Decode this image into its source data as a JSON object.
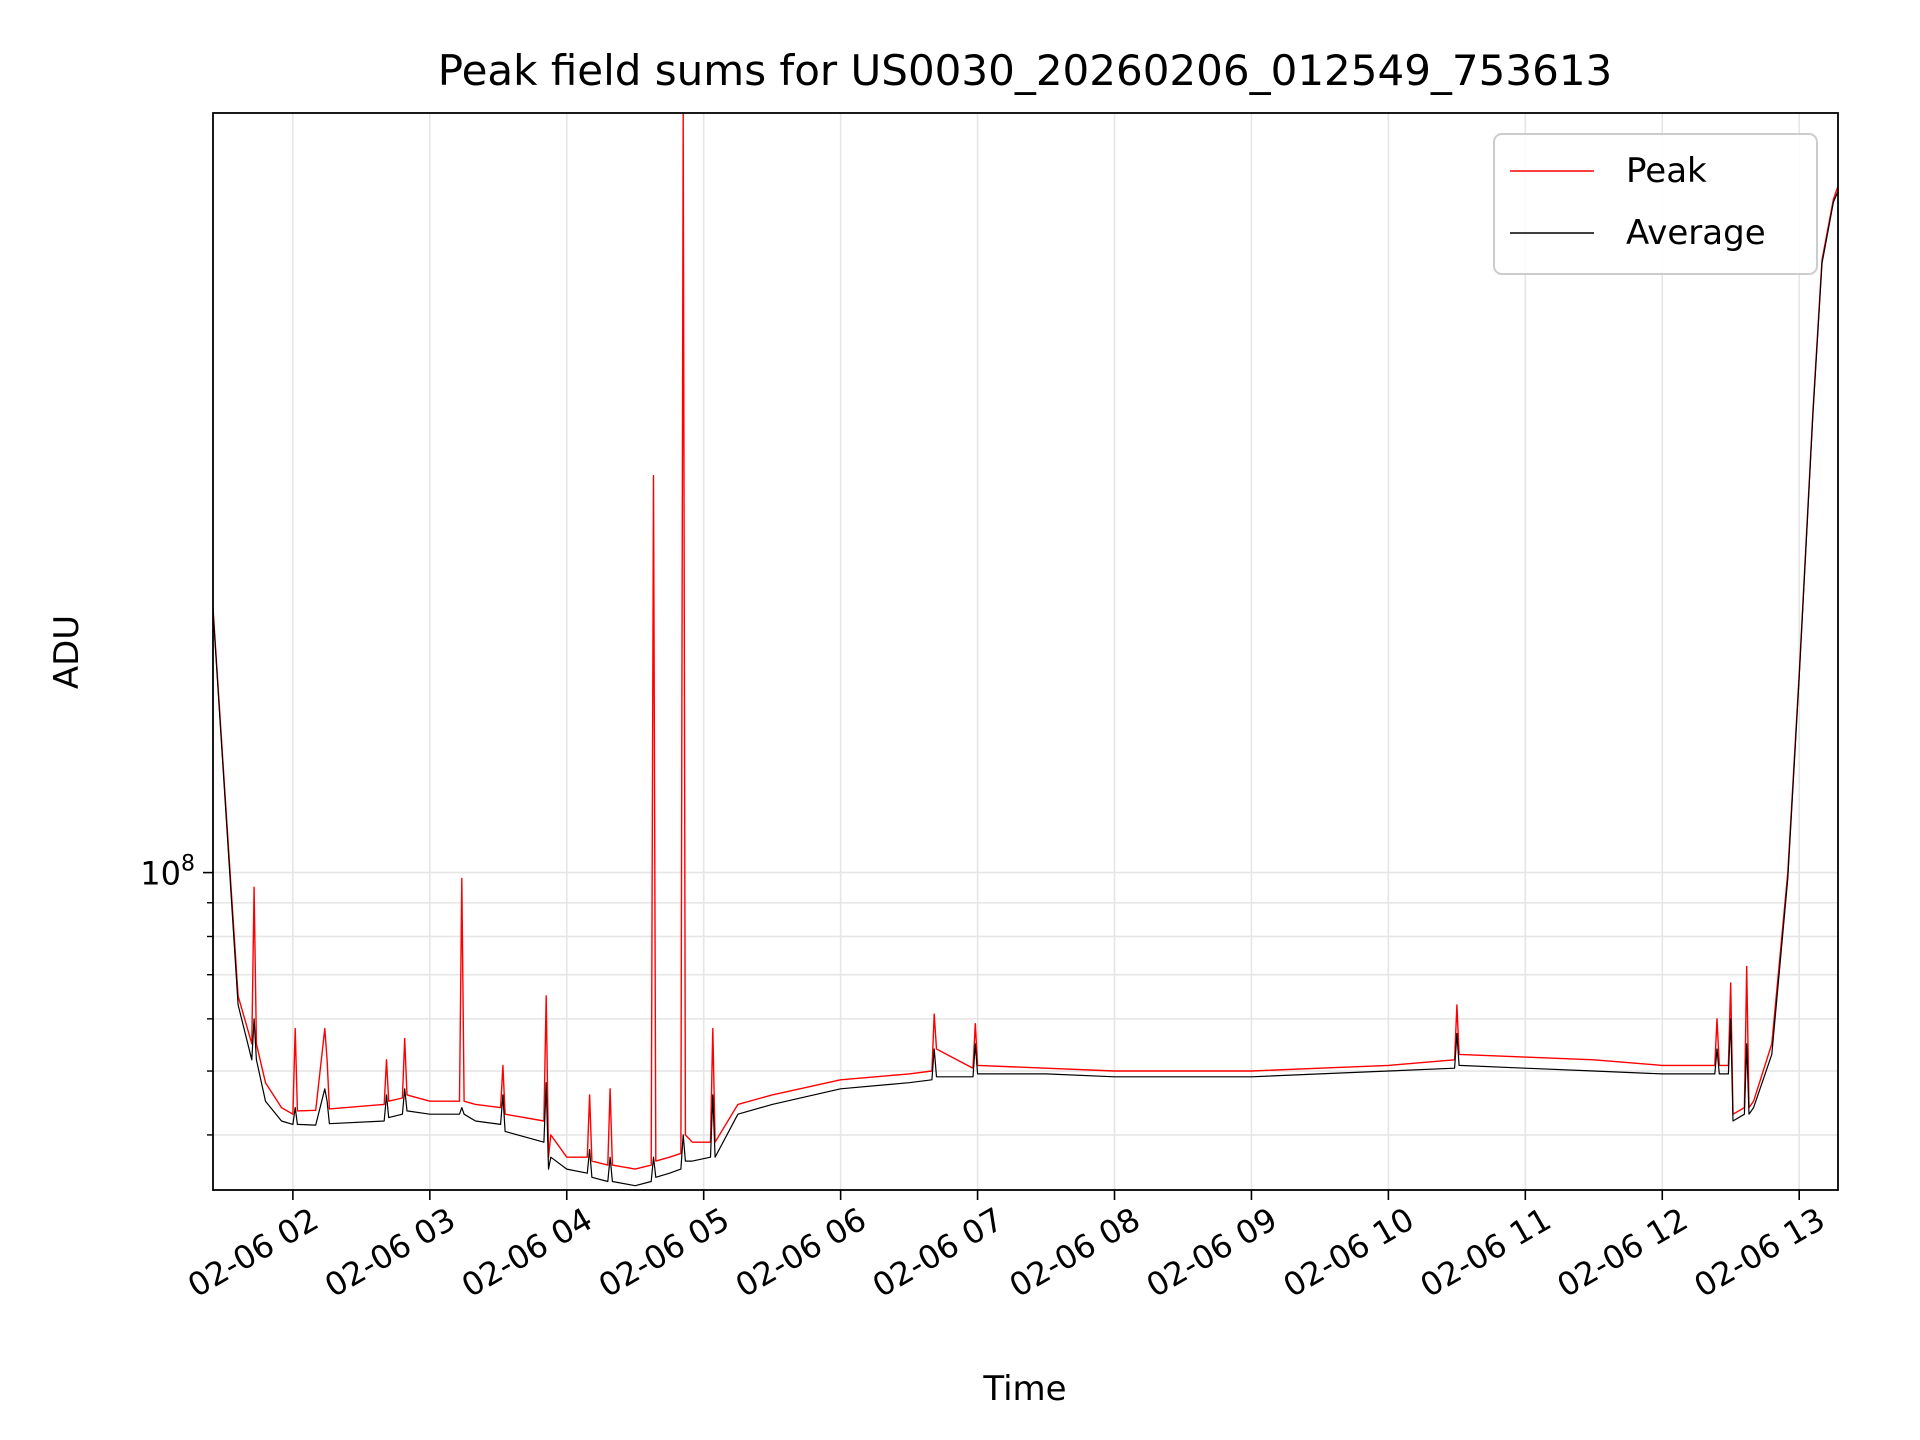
{
  "chart_data": {
    "type": "line",
    "title": "Peak field sums for US0030_20260206_012549_753613",
    "xlabel": "Time",
    "ylabel": "ADU",
    "y_scale": "log",
    "ylim": [
      33000000,
      1420000000
    ],
    "y_tick_labels": [
      {
        "base": "10",
        "exp": "8",
        "value": 100000000
      }
    ],
    "y_minor_ticks": [
      40000000,
      50000000,
      60000000,
      70000000,
      80000000,
      90000000
    ],
    "xlim": [
      "2026-02-06 01:25",
      "2026-02-06 13:17"
    ],
    "x_ticks": [
      {
        "label": "02-06 02",
        "time": "2026-02-06 02:00"
      },
      {
        "label": "02-06 03",
        "time": "2026-02-06 03:00"
      },
      {
        "label": "02-06 04",
        "time": "2026-02-06 04:00"
      },
      {
        "label": "02-06 05",
        "time": "2026-02-06 05:00"
      },
      {
        "label": "02-06 06",
        "time": "2026-02-06 06:00"
      },
      {
        "label": "02-06 07",
        "time": "2026-02-06 07:00"
      },
      {
        "label": "02-06 08",
        "time": "2026-02-06 08:00"
      },
      {
        "label": "02-06 09",
        "time": "2026-02-06 09:00"
      },
      {
        "label": "02-06 10",
        "time": "2026-02-06 10:00"
      },
      {
        "label": "02-06 11",
        "time": "2026-02-06 11:00"
      },
      {
        "label": "02-06 12",
        "time": "2026-02-06 12:00"
      },
      {
        "label": "02-06 13",
        "time": "2026-02-06 13:00"
      }
    ],
    "grid": true,
    "legend_position": "upper right",
    "series": [
      {
        "name": "Peak",
        "color": "#ff0000",
        "x": [
          "2026-02-06 01:25",
          "2026-02-06 01:31",
          "2026-02-06 01:36",
          "2026-02-06 01:42",
          "2026-02-06 01:43",
          "2026-02-06 01:44",
          "2026-02-06 01:48",
          "2026-02-06 01:55",
          "2026-02-06 02:00",
          "2026-02-06 02:01",
          "2026-02-06 02:02",
          "2026-02-06 02:10",
          "2026-02-06 02:14",
          "2026-02-06 02:15",
          "2026-02-06 02:16",
          "2026-02-06 02:40",
          "2026-02-06 02:41",
          "2026-02-06 02:42",
          "2026-02-06 02:48",
          "2026-02-06 02:49",
          "2026-02-06 02:50",
          "2026-02-06 03:00",
          "2026-02-06 03:13",
          "2026-02-06 03:14",
          "2026-02-06 03:15",
          "2026-02-06 03:20",
          "2026-02-06 03:31",
          "2026-02-06 03:32",
          "2026-02-06 03:33",
          "2026-02-06 03:50",
          "2026-02-06 03:51",
          "2026-02-06 03:52",
          "2026-02-06 03:53",
          "2026-02-06 04:00",
          "2026-02-06 04:09",
          "2026-02-06 04:10",
          "2026-02-06 04:11",
          "2026-02-06 04:18",
          "2026-02-06 04:19",
          "2026-02-06 04:20",
          "2026-02-06 04:30",
          "2026-02-06 04:37",
          "2026-02-06 04:38",
          "2026-02-06 04:39",
          "2026-02-06 04:45",
          "2026-02-06 04:50",
          "2026-02-06 04:51",
          "2026-02-06 04:52",
          "2026-02-06 04:55",
          "2026-02-06 05:03",
          "2026-02-06 05:04",
          "2026-02-06 05:05",
          "2026-02-06 05:15",
          "2026-02-06 05:30",
          "2026-02-06 06:00",
          "2026-02-06 06:30",
          "2026-02-06 06:40",
          "2026-02-06 06:41",
          "2026-02-06 06:42",
          "2026-02-06 06:58",
          "2026-02-06 06:59",
          "2026-02-06 07:00",
          "2026-02-06 07:30",
          "2026-02-06 08:00",
          "2026-02-06 08:30",
          "2026-02-06 09:00",
          "2026-02-06 09:30",
          "2026-02-06 10:00",
          "2026-02-06 10:29",
          "2026-02-06 10:30",
          "2026-02-06 10:31",
          "2026-02-06 11:00",
          "2026-02-06 11:30",
          "2026-02-06 12:00",
          "2026-02-06 12:23",
          "2026-02-06 12:24",
          "2026-02-06 12:25",
          "2026-02-06 12:29",
          "2026-02-06 12:30",
          "2026-02-06 12:31",
          "2026-02-06 12:36",
          "2026-02-06 12:37",
          "2026-02-06 12:38",
          "2026-02-06 12:40",
          "2026-02-06 12:48",
          "2026-02-06 12:55",
          "2026-02-06 13:00",
          "2026-02-06 13:06",
          "2026-02-06 13:10",
          "2026-02-06 13:15",
          "2026-02-06 13:17"
        ],
        "y": [
          252000000,
          120000000,
          65000000,
          55000000,
          95000000,
          55000000,
          48000000,
          44000000,
          43000000,
          58000000,
          43500000,
          43600000,
          58000000,
          52000000,
          43800000,
          44500000,
          52000000,
          45000000,
          45500000,
          56000000,
          46000000,
          45000000,
          45000000,
          98000000,
          45000000,
          44500000,
          44000000,
          51000000,
          43000000,
          42000000,
          65000000,
          37000000,
          40000000,
          37000000,
          37000000,
          46000000,
          36500000,
          36000000,
          47000000,
          36000000,
          35500000,
          36000000,
          400000000,
          36500000,
          37000000,
          37500000,
          1420000000,
          40000000,
          39000000,
          39000000,
          58000000,
          39000000,
          44500000,
          46000000,
          48500000,
          49500000,
          50000000,
          61000000,
          54000000,
          50500000,
          59000000,
          51000000,
          50500000,
          50000000,
          50000000,
          50000000,
          50500000,
          51000000,
          52000000,
          63000000,
          53000000,
          52500000,
          52000000,
          51000000,
          51000000,
          60000000,
          51000000,
          51000000,
          68000000,
          43000000,
          44000000,
          72000000,
          44000000,
          45000000,
          55000000,
          100000000,
          200000000,
          500000000,
          850000000,
          1050000000,
          1100000000
        ]
      },
      {
        "name": "Average",
        "color": "#000000",
        "x": [
          "2026-02-06 01:25",
          "2026-02-06 01:31",
          "2026-02-06 01:36",
          "2026-02-06 01:42",
          "2026-02-06 01:43",
          "2026-02-06 01:44",
          "2026-02-06 01:48",
          "2026-02-06 01:55",
          "2026-02-06 02:00",
          "2026-02-06 02:01",
          "2026-02-06 02:02",
          "2026-02-06 02:10",
          "2026-02-06 02:14",
          "2026-02-06 02:15",
          "2026-02-06 02:16",
          "2026-02-06 02:40",
          "2026-02-06 02:41",
          "2026-02-06 02:42",
          "2026-02-06 02:48",
          "2026-02-06 02:49",
          "2026-02-06 02:50",
          "2026-02-06 03:00",
          "2026-02-06 03:13",
          "2026-02-06 03:14",
          "2026-02-06 03:15",
          "2026-02-06 03:20",
          "2026-02-06 03:31",
          "2026-02-06 03:32",
          "2026-02-06 03:33",
          "2026-02-06 03:50",
          "2026-02-06 03:51",
          "2026-02-06 03:52",
          "2026-02-06 03:53",
          "2026-02-06 04:00",
          "2026-02-06 04:09",
          "2026-02-06 04:10",
          "2026-02-06 04:11",
          "2026-02-06 04:18",
          "2026-02-06 04:19",
          "2026-02-06 04:20",
          "2026-02-06 04:30",
          "2026-02-06 04:37",
          "2026-02-06 04:38",
          "2026-02-06 04:39",
          "2026-02-06 04:45",
          "2026-02-06 04:50",
          "2026-02-06 04:51",
          "2026-02-06 04:52",
          "2026-02-06 04:55",
          "2026-02-06 05:03",
          "2026-02-06 05:04",
          "2026-02-06 05:05",
          "2026-02-06 05:15",
          "2026-02-06 05:30",
          "2026-02-06 06:00",
          "2026-02-06 06:30",
          "2026-02-06 06:40",
          "2026-02-06 06:41",
          "2026-02-06 06:42",
          "2026-02-06 06:58",
          "2026-02-06 06:59",
          "2026-02-06 07:00",
          "2026-02-06 07:30",
          "2026-02-06 08:00",
          "2026-02-06 08:30",
          "2026-02-06 09:00",
          "2026-02-06 09:30",
          "2026-02-06 10:00",
          "2026-02-06 10:29",
          "2026-02-06 10:30",
          "2026-02-06 10:31",
          "2026-02-06 11:00",
          "2026-02-06 11:30",
          "2026-02-06 12:00",
          "2026-02-06 12:23",
          "2026-02-06 12:24",
          "2026-02-06 12:25",
          "2026-02-06 12:29",
          "2026-02-06 12:30",
          "2026-02-06 12:31",
          "2026-02-06 12:36",
          "2026-02-06 12:37",
          "2026-02-06 12:38",
          "2026-02-06 12:40",
          "2026-02-06 12:48",
          "2026-02-06 12:55",
          "2026-02-06 13:00",
          "2026-02-06 13:06",
          "2026-02-06 13:10",
          "2026-02-06 13:15",
          "2026-02-06 13:17"
        ],
        "y": [
          250000000,
          118000000,
          63000000,
          52000000,
          60000000,
          52000000,
          45000000,
          42000000,
          41500000,
          44000000,
          41500000,
          41400000,
          47000000,
          45000000,
          41600000,
          42000000,
          46000000,
          42500000,
          43000000,
          47000000,
          43500000,
          43000000,
          43000000,
          44000000,
          43000000,
          42000000,
          41500000,
          46000000,
          40500000,
          39000000,
          48000000,
          35500000,
          37000000,
          35500000,
          35000000,
          38000000,
          34500000,
          34000000,
          37000000,
          34000000,
          33500000,
          34000000,
          37000000,
          34500000,
          35000000,
          35500000,
          40000000,
          36500000,
          36500000,
          37000000,
          46000000,
          37000000,
          43000000,
          44500000,
          47000000,
          48000000,
          48500000,
          54000000,
          49000000,
          49000000,
          55000000,
          49500000,
          49500000,
          49000000,
          49000000,
          49000000,
          49500000,
          50000000,
          50500000,
          57000000,
          51000000,
          50500000,
          50000000,
          49500000,
          49500000,
          54000000,
          49500000,
          49500000,
          60000000,
          42000000,
          43000000,
          55000000,
          43000000,
          44000000,
          53000000,
          98000000,
          198000000,
          495000000,
          840000000,
          1040000000,
          1080000000
        ]
      }
    ]
  }
}
